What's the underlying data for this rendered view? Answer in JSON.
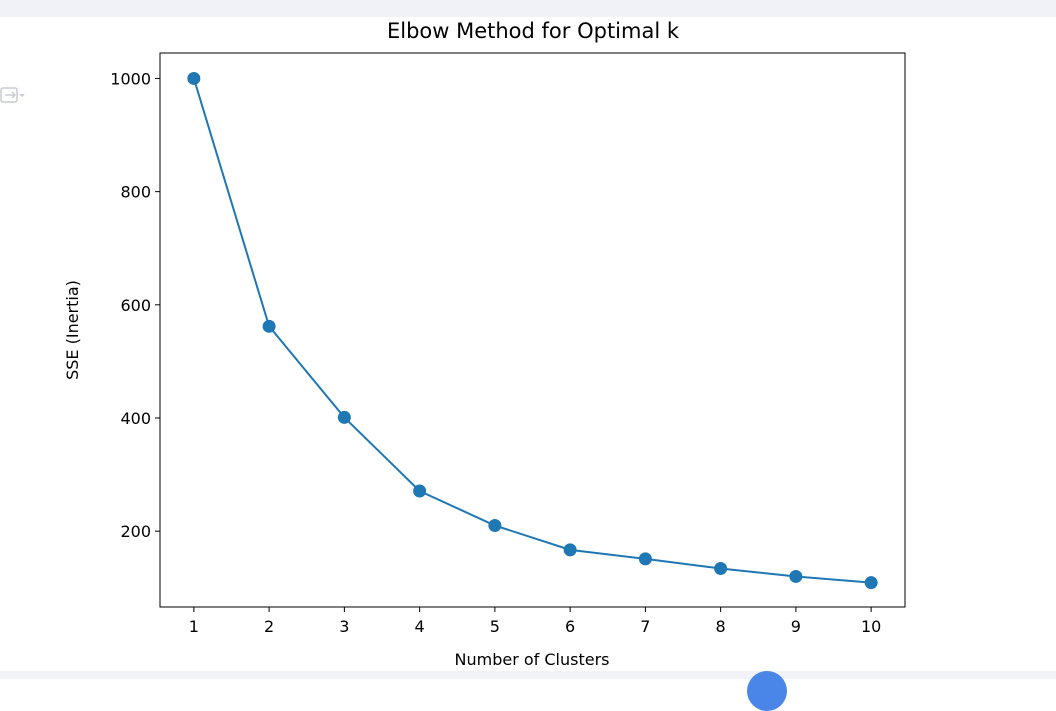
{
  "output_area": {
    "output_icon": "output-toggle-icon",
    "fab_icon": "floating-action-button"
  },
  "colors": {
    "line": "#1f77b4",
    "marker": "#1f77b4",
    "axes": "#000000",
    "panel_background": "#f0f2f7",
    "fab": "#4a86e8"
  },
  "chart_data": {
    "type": "line",
    "title": "Elbow Method for Optimal k",
    "xlabel": "Number of Clusters",
    "ylabel": "SSE (Inertia)",
    "x": [
      1,
      2,
      3,
      4,
      5,
      6,
      7,
      8,
      9,
      10
    ],
    "series": [
      {
        "values": [
          1000,
          562,
          401,
          271,
          210,
          167,
          151,
          134,
          120,
          109
        ],
        "marker": "circle"
      }
    ],
    "xticks": [
      1,
      2,
      3,
      4,
      5,
      6,
      7,
      8,
      9,
      10
    ],
    "xtick_labels": [
      "1",
      "2",
      "3",
      "4",
      "5",
      "6",
      "7",
      "8",
      "9",
      "10"
    ],
    "yticks": [
      200,
      400,
      600,
      800,
      1000
    ],
    "ytick_labels": [
      "200",
      "400",
      "600",
      "800",
      "1000"
    ],
    "xlim": [
      0.55,
      10.45
    ],
    "ylim": [
      66,
      1045
    ],
    "grid": false,
    "legend": false
  }
}
